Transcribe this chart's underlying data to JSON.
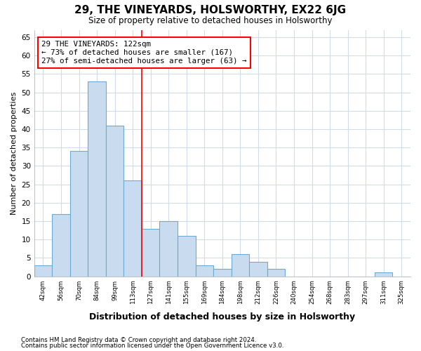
{
  "title": "29, THE VINEYARDS, HOLSWORTHY, EX22 6JG",
  "subtitle": "Size of property relative to detached houses in Holsworthy",
  "xlabel": "Distribution of detached houses by size in Holsworthy",
  "ylabel": "Number of detached properties",
  "categories": [
    "42sqm",
    "56sqm",
    "70sqm",
    "84sqm",
    "99sqm",
    "113sqm",
    "127sqm",
    "141sqm",
    "155sqm",
    "169sqm",
    "184sqm",
    "198sqm",
    "212sqm",
    "226sqm",
    "240sqm",
    "254sqm",
    "268sqm",
    "283sqm",
    "297sqm",
    "311sqm",
    "325sqm"
  ],
  "values": [
    3,
    17,
    34,
    53,
    41,
    26,
    13,
    15,
    11,
    3,
    2,
    6,
    4,
    2,
    0,
    0,
    0,
    0,
    0,
    1,
    0
  ],
  "bar_color": "#c9dcef",
  "bar_edge_color": "#6aaad4",
  "grid_color": "#d0dcea",
  "vline_x": 5.5,
  "vline_color": "red",
  "annotation_line1": "29 THE VINEYARDS: 122sqm",
  "annotation_line2": "← 73% of detached houses are smaller (167)",
  "annotation_line3": "27% of semi-detached houses are larger (63) →",
  "annotation_box_color": "white",
  "annotation_box_edgecolor": "red",
  "ylim": [
    0,
    67
  ],
  "yticks": [
    0,
    5,
    10,
    15,
    20,
    25,
    30,
    35,
    40,
    45,
    50,
    55,
    60,
    65
  ],
  "footer1": "Contains HM Land Registry data © Crown copyright and database right 2024.",
  "footer2": "Contains public sector information licensed under the Open Government Licence v3.0.",
  "bg_color": "#ffffff",
  "plot_bg_color": "#ffffff"
}
